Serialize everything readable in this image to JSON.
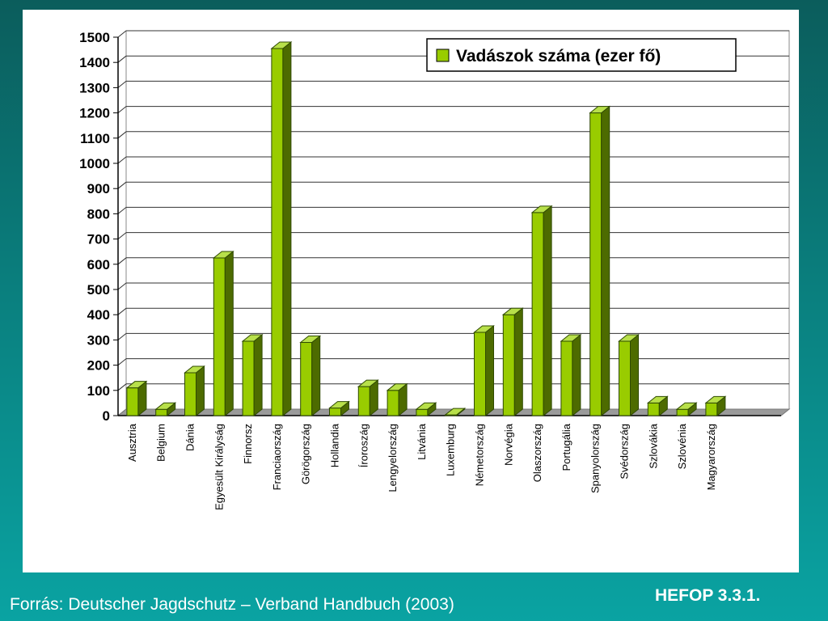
{
  "chart_data": {
    "type": "bar",
    "title": "",
    "xlabel": "",
    "ylabel": "",
    "ylim": [
      0,
      1500
    ],
    "yticks": [
      0,
      100,
      200,
      300,
      400,
      500,
      600,
      700,
      800,
      900,
      1000,
      1100,
      1200,
      1300,
      1400,
      1500
    ],
    "grid": true,
    "legend_position": "top-right",
    "categories": [
      "Ausztria",
      "Belgium",
      "Dánia",
      "Egyesült Királyság",
      "Finnorsz",
      "Franciaország",
      "Görögország",
      "Hollandia",
      "Íroroszág",
      "Lengyelország",
      "Litvánia",
      "Luxemburg",
      "Németország",
      "Norvégia",
      "Olaszország",
      "Portugália",
      "Spanyolország",
      "Svédország",
      "Szlovákia",
      "Szlovénia",
      "Magyarország"
    ],
    "series": [
      {
        "name": "Vadászok száma (ezer fő)",
        "color": "#99cc00",
        "values": [
          110,
          25,
          170,
          625,
          295,
          1455,
          290,
          30,
          115,
          100,
          25,
          3,
          330,
          400,
          805,
          295,
          1200,
          295,
          50,
          25,
          50
        ]
      }
    ]
  },
  "footer": {
    "source": "Forrás: Deutscher Jagdschutz – Verband Handbuch (2003)",
    "code": "HEFOP 3.3.1."
  }
}
